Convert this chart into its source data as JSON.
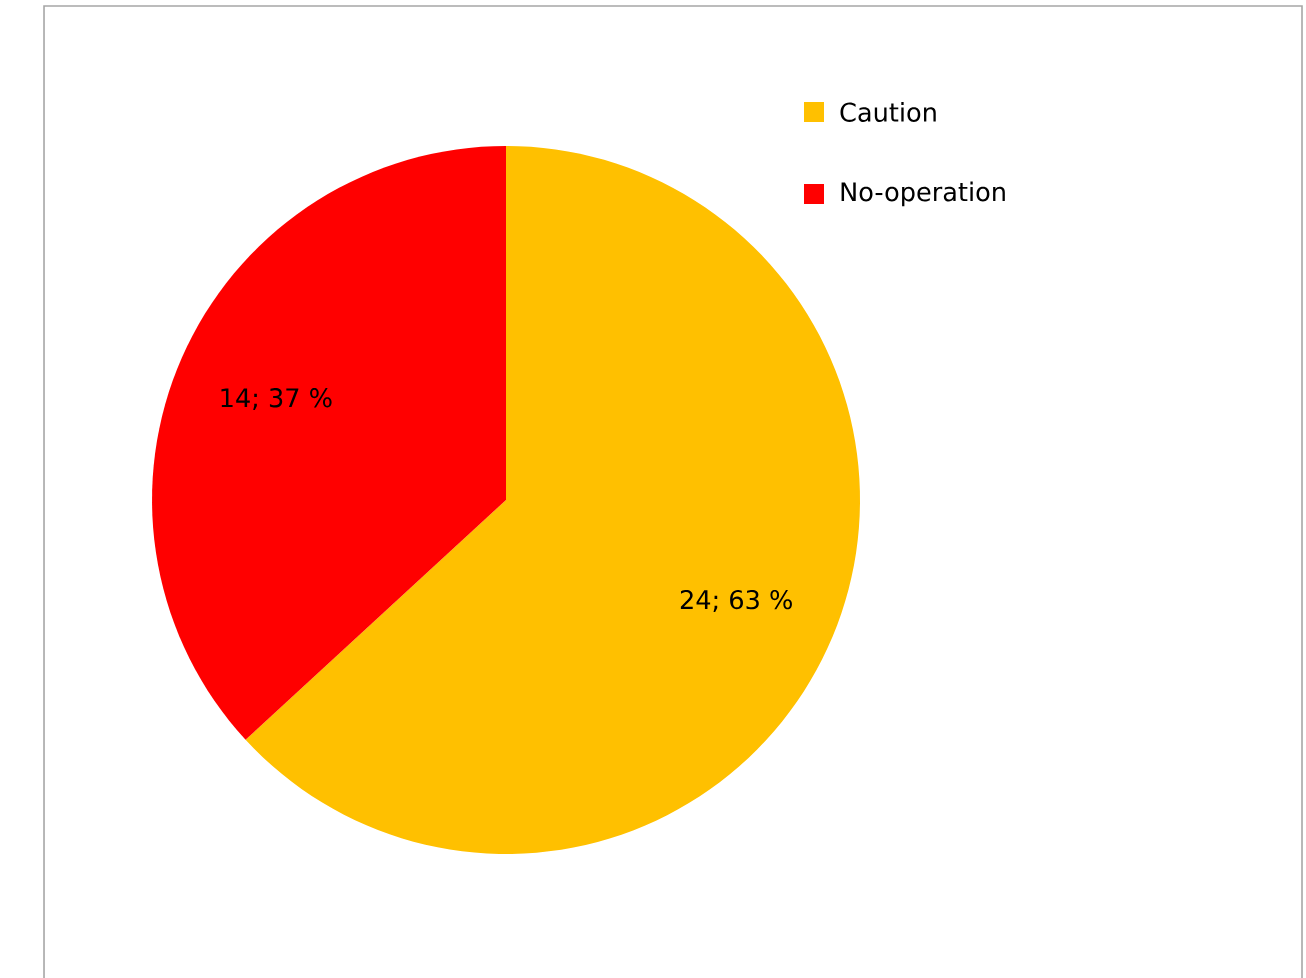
{
  "chart_data": {
    "type": "pie",
    "categories": [
      "Caution",
      "No-operation"
    ],
    "values": [
      24,
      14
    ],
    "colors": [
      "#ffc000",
      "#ff0000"
    ],
    "value_labels": [
      "24; 63 %",
      "14; 37 %"
    ],
    "legend": "top right"
  }
}
